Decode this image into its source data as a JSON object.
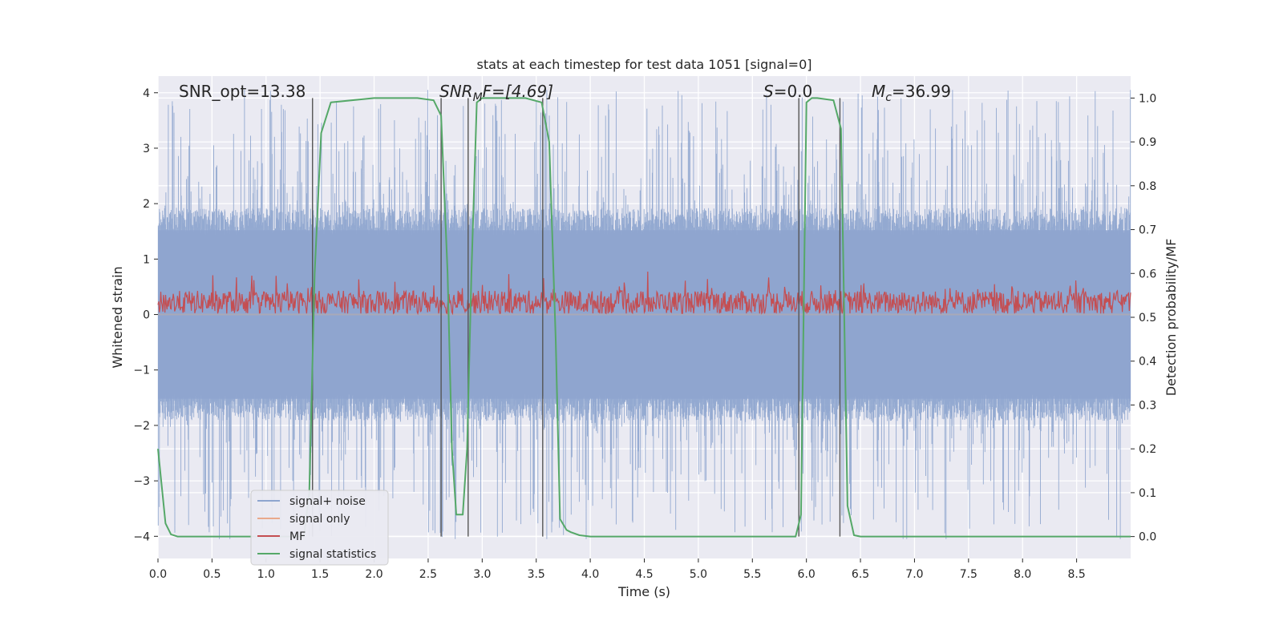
{
  "chart_data": {
    "type": "line",
    "title": "stats at each timestep for test data 1051 [signal=0]",
    "xlabel": "Time (s)",
    "ylabel": "Whitened strain",
    "y2label": "Detection probability/MF",
    "xlim": [
      0,
      9.0
    ],
    "ylim": [
      -4.4,
      4.3
    ],
    "y2lim": [
      -0.05,
      1.05
    ],
    "xticks": [
      0.0,
      0.5,
      1.0,
      1.5,
      2.0,
      2.5,
      3.0,
      3.5,
      4.0,
      4.5,
      5.0,
      5.5,
      6.0,
      6.5,
      7.0,
      7.5,
      8.0,
      8.5
    ],
    "xtick_labels": [
      "0.0",
      "0.5",
      "1.0",
      "1.5",
      "2.0",
      "2.5",
      "3.0",
      "3.5",
      "4.0",
      "4.5",
      "5.0",
      "5.5",
      "6.0",
      "6.5",
      "7.0",
      "7.5",
      "8.0",
      "8.5"
    ],
    "yticks": [
      -4,
      -3,
      -2,
      -1,
      0,
      1,
      2,
      3,
      4
    ],
    "ytick_labels": [
      "−4",
      "−3",
      "−2",
      "−1",
      "0",
      "1",
      "2",
      "3",
      "4"
    ],
    "y2ticks": [
      0.0,
      0.1,
      0.2,
      0.3,
      0.4,
      0.5,
      0.6,
      0.7,
      0.8,
      0.9,
      1.0
    ],
    "y2tick_labels": [
      "0.0",
      "0.1",
      "0.2",
      "0.3",
      "0.4",
      "0.5",
      "0.6",
      "0.7",
      "0.8",
      "0.9",
      "1.0"
    ],
    "annotations": {
      "snr_opt": "SNR_opt=13.38",
      "snr_mf_main": "SNR",
      "snr_mf_sub": "M",
      "snr_mf_rest": "F=[4.69]",
      "s_main": "S",
      "s_rest": "=0.0",
      "mc_main": "M",
      "mc_sub": "c",
      "mc_rest": "=36.99"
    },
    "vlines": [
      1.43,
      2.62,
      2.87,
      3.56,
      5.93,
      6.31
    ],
    "series": [
      {
        "name": "signal+ noise",
        "color": "#8ea5cf",
        "kind": "noise",
        "envelope": 1.6,
        "peak": 3.9
      },
      {
        "name": "signal only",
        "color": "#e9a98c",
        "kind": "flat",
        "value": 0
      },
      {
        "name": "MF",
        "color": "#c44e52",
        "kind": "mf",
        "base": 0.22,
        "peak": 0.6
      },
      {
        "name": "signal statistics",
        "color": "#55a868",
        "kind": "line",
        "axis": "right",
        "x": [
          0.0,
          0.07,
          0.12,
          0.18,
          0.25,
          0.5,
          1.0,
          1.35,
          1.4,
          1.45,
          1.51,
          1.6,
          2.0,
          2.4,
          2.55,
          2.62,
          2.68,
          2.72,
          2.76,
          2.82,
          2.86,
          2.9,
          2.95,
          3.0,
          3.4,
          3.55,
          3.62,
          3.68,
          3.72,
          3.78,
          3.82,
          3.9,
          4.0,
          5.5,
          5.9,
          5.95,
          6.0,
          6.05,
          6.1,
          6.25,
          6.32,
          6.38,
          6.44,
          6.5,
          8.0,
          9.0
        ],
        "y": [
          0.2,
          0.03,
          0.005,
          0.0,
          0.0,
          0.0,
          0.0,
          0.0,
          0.1,
          0.6,
          0.92,
          0.99,
          1.0,
          1.0,
          0.995,
          0.96,
          0.6,
          0.2,
          0.05,
          0.05,
          0.2,
          0.6,
          0.99,
          1.0,
          1.0,
          0.99,
          0.9,
          0.45,
          0.04,
          0.015,
          0.01,
          0.003,
          0.0,
          0.0,
          0.0,
          0.05,
          0.99,
          1.0,
          1.0,
          0.995,
          0.93,
          0.07,
          0.003,
          0.0,
          0.0,
          0.0
        ]
      }
    ],
    "legend": {
      "placement": "lower-left",
      "entries": [
        "signal+ noise",
        "signal only",
        "MF",
        "signal statistics"
      ]
    }
  }
}
